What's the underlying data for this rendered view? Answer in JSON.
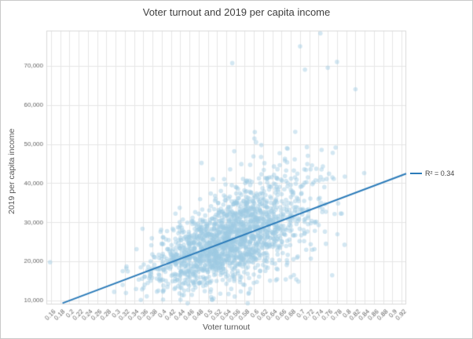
{
  "chart_data": {
    "type": "scatter",
    "title": "Voter turnout and 2019 per capita income",
    "xlabel": "Voter turnout",
    "ylabel": "2019 per capita income",
    "xlim": [
      0.15,
      0.93
    ],
    "ylim": [
      9000,
      79000
    ],
    "grid": true,
    "legend_position": "right",
    "x_ticks": [
      0.16,
      0.18,
      0.2,
      0.22,
      0.24,
      0.26,
      0.28,
      0.3,
      0.32,
      0.34,
      0.36,
      0.38,
      0.4,
      0.42,
      0.44,
      0.46,
      0.48,
      0.5,
      0.52,
      0.54,
      0.56,
      0.58,
      0.6,
      0.62,
      0.64,
      0.66,
      0.68,
      0.7,
      0.72,
      0.74,
      0.76,
      0.78,
      0.8,
      0.82,
      0.84,
      0.86,
      0.88,
      0.9,
      0.92
    ],
    "x_tick_labels": [
      "0.16",
      "0.18",
      "0.2",
      "0.22",
      "0.24",
      "0.26",
      "0.28",
      "0.3",
      "0.32",
      "0.34",
      "0.36",
      "0.38",
      "0.4",
      "0.42",
      "0.44",
      "0.46",
      "0.48",
      "0.5",
      "0.52",
      "0.54",
      "0.56",
      "0.58",
      "0.6",
      "0.62",
      "0.64",
      "0.66",
      "0.68",
      "0.7",
      "0.72",
      "0.74",
      "0.76",
      "0.78",
      "0.8",
      "0.82",
      "0.84",
      "0.86",
      "0.88",
      "0.9",
      "0.92"
    ],
    "y_ticks": [
      10000,
      20000,
      30000,
      40000,
      50000,
      60000,
      70000
    ],
    "y_tick_labels": [
      "10,000",
      "20,000",
      "30,000",
      "40,000",
      "50,000",
      "60,000",
      "70,000"
    ],
    "grid_color": "#e6e6e6",
    "plot_border_color": "#dadada",
    "tick_color": "#666666",
    "point_color": "#9ec9e2",
    "point_opacity": 0.45,
    "point_radius": 2.8,
    "trend_line": {
      "color": "#2b7bb9",
      "label": "R² = 0.34",
      "r_squared": 0.34,
      "slope": 44444,
      "intercept": 1111,
      "x1": 0.185,
      "y1": 9333,
      "x2": 0.93,
      "y2": 42444
    },
    "point_cloud": {
      "count": 1900,
      "seed": 42,
      "x_mean": 0.552,
      "x_sd": 0.083,
      "noise_base": 3200,
      "noise_grow": 11000,
      "outlier_rate": 0.055,
      "outlier_base": 6000,
      "outlier_grow": 15000
    },
    "extra_points": [
      [
        0.158,
        19800
      ],
      [
        0.553,
        70700
      ],
      [
        0.744,
        78300
      ],
      [
        0.7,
        75000
      ],
      [
        0.78,
        71000
      ],
      [
        0.82,
        64000
      ],
      [
        0.76,
        69500
      ]
    ]
  }
}
